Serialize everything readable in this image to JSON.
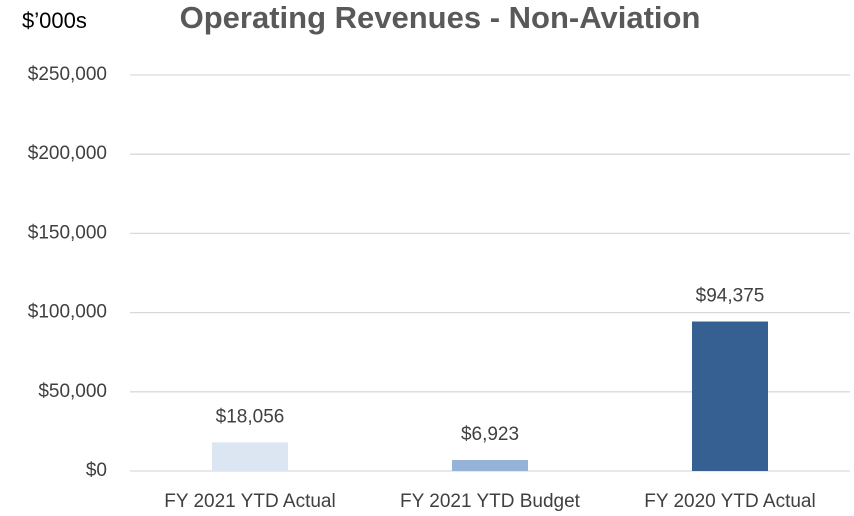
{
  "chart_data": {
    "type": "bar",
    "title": "Operating Revenues - Non-Aviation",
    "y_label": "$’000s",
    "categories": [
      "FY 2021  YTD Actual",
      "FY 2021  YTD Budget",
      "FY 2020  YTD Actual"
    ],
    "values": [
      18056,
      6923,
      94375
    ],
    "value_labels": [
      "$18,056",
      "$6,923",
      "$94,375"
    ],
    "colors": [
      "#dce6f2",
      "#95b3d7",
      "#376092"
    ],
    "ylim": [
      0,
      250000
    ],
    "yticks": [
      {
        "value": 0,
        "label": "$0"
      },
      {
        "value": 50000,
        "label": "$50,000"
      },
      {
        "value": 100000,
        "label": "$100,000"
      },
      {
        "value": 150000,
        "label": "$150,000"
      },
      {
        "value": 200000,
        "label": "$200,000"
      },
      {
        "value": 250000,
        "label": "$250,000"
      }
    ],
    "grid": true
  }
}
